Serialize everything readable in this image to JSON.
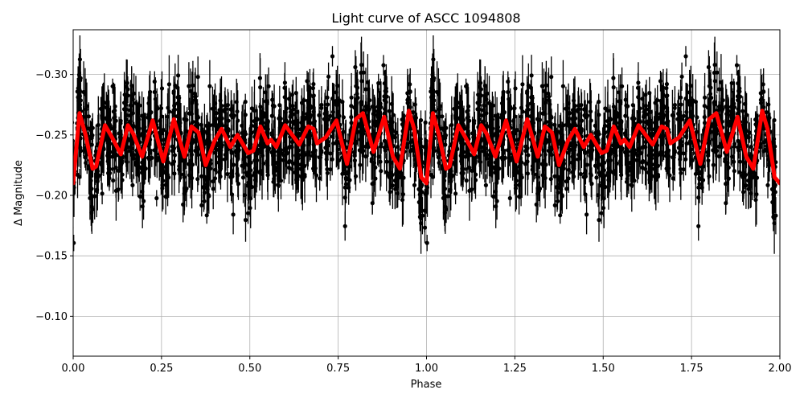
{
  "chart_data": {
    "type": "scatter",
    "title": "Light curve of ASCC 1094808",
    "xlabel": "Phase",
    "ylabel": "Δ Magnitude",
    "xlim": [
      0.0,
      2.0
    ],
    "ylim": [
      -0.337,
      -0.067
    ],
    "y_inverted": true,
    "grid": true,
    "x_ticks": [
      0.0,
      0.25,
      0.5,
      0.75,
      1.0,
      1.25,
      1.5,
      1.75,
      2.0
    ],
    "x_tick_labels": [
      "0.00",
      "0.25",
      "0.50",
      "0.75",
      "1.00",
      "1.25",
      "1.50",
      "1.75",
      "2.00"
    ],
    "y_ticks": [
      -0.3,
      -0.25,
      -0.2,
      -0.15,
      -0.1
    ],
    "y_tick_labels": [
      "−0.30",
      "−0.25",
      "−0.20",
      "−0.15",
      "−0.10"
    ],
    "legend": null,
    "series": [
      {
        "name": "observations",
        "kind": "errorbar-scatter",
        "color": "#000000",
        "description": "Dense phase-folded photometry with vertical error bars, repeated over two cycles; mean near -0.245, scatter roughly -0.34 to -0.07",
        "approx_mean": -0.245,
        "approx_range": [
          -0.34,
          -0.07
        ]
      },
      {
        "name": "model",
        "kind": "line",
        "color": "#ff0000",
        "period_repeats": 2,
        "x": [
          0.0,
          0.018,
          0.035,
          0.055,
          0.065,
          0.09,
          0.11,
          0.135,
          0.155,
          0.17,
          0.195,
          0.225,
          0.255,
          0.285,
          0.315,
          0.335,
          0.355,
          0.375,
          0.4,
          0.42,
          0.445,
          0.465,
          0.475,
          0.495,
          0.51,
          0.53,
          0.55,
          0.56,
          0.575,
          0.6,
          0.615,
          0.64,
          0.665,
          0.68,
          0.69,
          0.715,
          0.745,
          0.775,
          0.8,
          0.82,
          0.85,
          0.88,
          0.905,
          0.925,
          0.95,
          0.965,
          0.985,
          1.0
        ],
        "y": [
          -0.21,
          -0.268,
          -0.25,
          -0.222,
          -0.224,
          -0.258,
          -0.248,
          -0.234,
          -0.258,
          -0.251,
          -0.232,
          -0.262,
          -0.228,
          -0.263,
          -0.232,
          -0.257,
          -0.252,
          -0.225,
          -0.245,
          -0.255,
          -0.24,
          -0.25,
          -0.245,
          -0.235,
          -0.237,
          -0.257,
          -0.243,
          -0.246,
          -0.24,
          -0.258,
          -0.252,
          -0.242,
          -0.257,
          -0.255,
          -0.243,
          -0.248,
          -0.262,
          -0.226,
          -0.263,
          -0.268,
          -0.236,
          -0.265,
          -0.232,
          -0.222,
          -0.27,
          -0.255,
          -0.215,
          -0.21
        ]
      }
    ]
  },
  "colors": {
    "background": "#ffffff",
    "axes": "#000000",
    "grid": "#b0b0b0",
    "points": "#000000",
    "model": "#ff0000"
  }
}
